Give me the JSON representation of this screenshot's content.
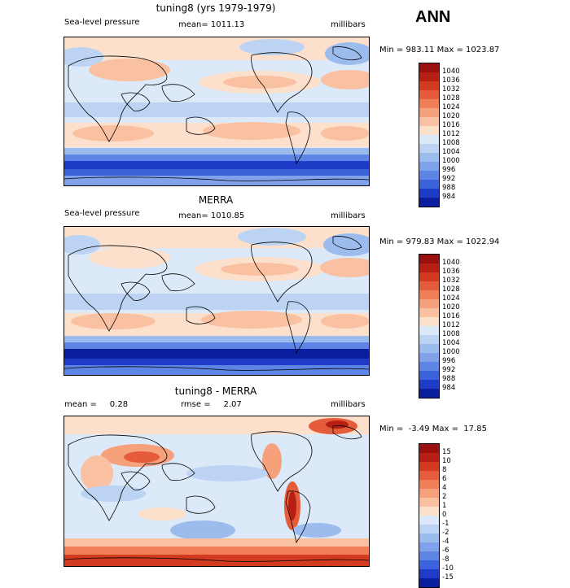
{
  "season": "ANN",
  "panels": [
    {
      "title": "tuning8 (yrs 1979-1979)",
      "left_label": "Sea-level pressure",
      "mid_label": "mean= 1011.13",
      "right_label": "millibars",
      "minmax": "Min = 983.11 Max = 1023.87",
      "colorbar": {
        "labels": [
          "1040",
          "1036",
          "1032",
          "1028",
          "1024",
          "1020",
          "1016",
          "1012",
          "1008",
          "1004",
          "1000",
          "996",
          "992",
          "988",
          "984"
        ],
        "colors": [
          "#9a0f0f",
          "#b81f14",
          "#d23b1f",
          "#e55c3a",
          "#f07e57",
          "#f6a07c",
          "#f9c1a2",
          "#fce0cc",
          "#dce9f8",
          "#bcd3f3",
          "#9dbcee",
          "#7fa2ea",
          "#5e85e5",
          "#3c63d9",
          "#1e3cc7",
          "#0a1e9e"
        ]
      }
    },
    {
      "title": "MERRA",
      "left_label": "Sea-level pressure",
      "mid_label": "mean= 1010.85",
      "right_label": "millibars",
      "minmax": "Min = 979.83 Max = 1022.94",
      "colorbar": {
        "labels": [
          "1040",
          "1036",
          "1032",
          "1028",
          "1024",
          "1020",
          "1016",
          "1012",
          "1008",
          "1004",
          "1000",
          "996",
          "992",
          "988",
          "984"
        ],
        "colors": [
          "#9a0f0f",
          "#b81f14",
          "#d23b1f",
          "#e55c3a",
          "#f07e57",
          "#f6a07c",
          "#f9c1a2",
          "#fce0cc",
          "#dce9f8",
          "#bcd3f3",
          "#9dbcee",
          "#7fa2ea",
          "#5e85e5",
          "#3c63d9",
          "#1e3cc7",
          "#0a1e9e"
        ]
      }
    },
    {
      "title": "tuning8 - MERRA",
      "left_label": "mean =     0.28",
      "mid_label": "rmse =     2.07",
      "right_label": "millibars",
      "minmax": "Min =  -3.49 Max =  17.85",
      "colorbar": {
        "labels": [
          "15",
          "10",
          "8",
          "6",
          "4",
          "2",
          "1",
          "0",
          "-1",
          "-2",
          "-4",
          "-6",
          "-8",
          "-10",
          "-15"
        ],
        "colors": [
          "#9a0f0f",
          "#b81f14",
          "#d23b1f",
          "#e55c3a",
          "#f07e57",
          "#f6a07c",
          "#f9c1a2",
          "#fce0cc",
          "#dce9f8",
          "#bcd3f3",
          "#9dbcee",
          "#7fa2ea",
          "#5e85e5",
          "#3c63d9",
          "#1e3cc7",
          "#0a1e9e"
        ]
      }
    }
  ]
}
